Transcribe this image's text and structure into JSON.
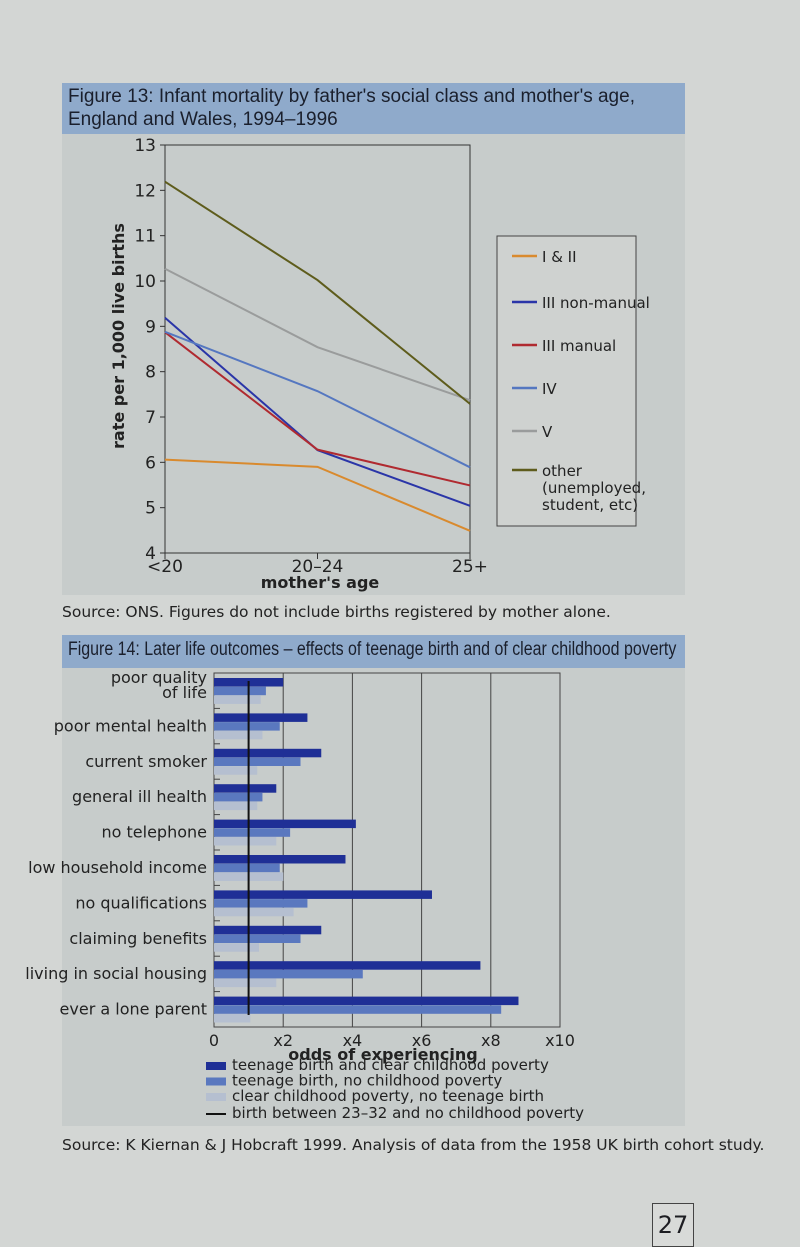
{
  "figure13": {
    "title": "Figure 13: Infant mortality by father's social class and mother's age, England and Wales, 1994–1996",
    "source": "Source: ONS. Figures do not include births registered by mother alone."
  },
  "figure14": {
    "title": "Figure 14: Later life outcomes – effects of teenage birth and of clear childhood poverty",
    "source": "Source: K Kiernan & J Hobcraft 1999. Analysis of data from the 1958 UK birth cohort study."
  },
  "page_number": "27",
  "chart_data": [
    {
      "type": "line",
      "ylabel": "rate per 1,000 live births",
      "xlabel": "mother's age",
      "categories": [
        "<20",
        "20–24",
        "25+"
      ],
      "ylim": [
        4,
        13
      ],
      "yticks": [
        "4",
        "5",
        "6",
        "7",
        "8",
        "9",
        "10",
        "11",
        "12",
        "13"
      ],
      "legend_placement": "right",
      "series": [
        {
          "name": "I & II",
          "color": "#d98a2e",
          "values": [
            6.06,
            5.9,
            4.49
          ]
        },
        {
          "name": "III non-manual",
          "color": "#2a35a8",
          "values": [
            9.19,
            6.27,
            5.04
          ]
        },
        {
          "name": "III manual",
          "color": "#b02a30",
          "values": [
            8.87,
            6.28,
            5.49
          ]
        },
        {
          "name": "IV",
          "color": "#5577c0",
          "values": [
            8.88,
            7.57,
            5.89
          ]
        },
        {
          "name": "V",
          "color": "#9a9c9c",
          "values": [
            10.27,
            8.54,
            7.37
          ]
        },
        {
          "name": "other (unemployed, student, etc)",
          "color": "#5e5c1c",
          "values": [
            12.19,
            10.02,
            7.29
          ]
        }
      ]
    },
    {
      "type": "bar",
      "orientation": "horizontal",
      "xlabel": "odds of experiencing",
      "xlim": [
        0,
        10
      ],
      "xticks": [
        "0",
        "x2",
        "x4",
        "x6",
        "x8",
        "x10"
      ],
      "categories": [
        "poor quality of life",
        "poor mental health",
        "current smoker",
        "general ill health",
        "no telephone",
        "low household income",
        "no qualifications",
        "claiming benefits",
        "living in social housing",
        "ever a lone parent"
      ],
      "series": [
        {
          "name": "teenage birth and clear childhood poverty",
          "color": "#1f2f96",
          "values": [
            2.0,
            2.7,
            3.1,
            1.8,
            4.1,
            3.8,
            6.3,
            3.1,
            7.7,
            8.8
          ]
        },
        {
          "name": "teenage birth, no childhood poverty",
          "color": "#5a78bf",
          "values": [
            1.5,
            1.9,
            2.5,
            1.4,
            2.2,
            1.9,
            2.7,
            2.5,
            4.3,
            8.3
          ]
        },
        {
          "name": "clear childhood poverty, no teenage birth",
          "color": "#b5bfd0",
          "values": [
            1.35,
            1.4,
            1.25,
            1.25,
            1.8,
            2.0,
            2.3,
            1.3,
            1.8,
            1.05
          ]
        }
      ],
      "reference_line": {
        "name": "birth between 23–32 and no childhood poverty",
        "value": 1
      }
    }
  ]
}
